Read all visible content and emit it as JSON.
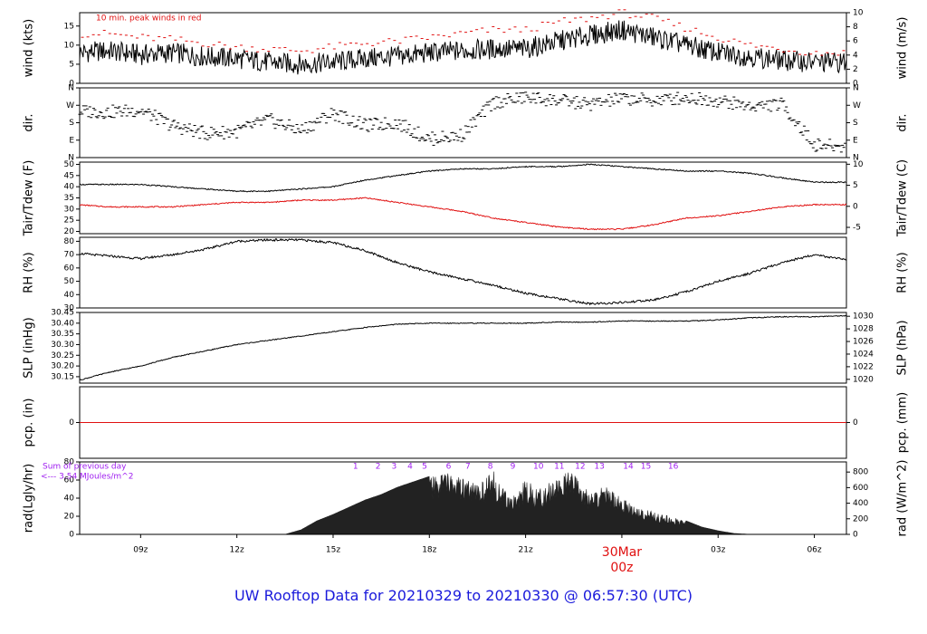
{
  "title": "UW Rooftop Data for 20210329  to  20210330 @ 06:57:30  (UTC)",
  "colors": {
    "primary": "#000000",
    "secondary": "#e01010",
    "radiation": "#222222",
    "annotation": "#a020f0",
    "title": "#1a1adb"
  },
  "chart_data": [
    {
      "type": "line",
      "panel": "wind",
      "ylabel": "wind (kts)",
      "ylabel_right": "wind (m/s)",
      "annotation": "10 min. peak winds in red",
      "ylim": [
        0,
        18.5
      ],
      "yticks": [
        0,
        5,
        10,
        15
      ],
      "ylim_right": [
        0,
        10
      ],
      "yticks_right": [
        0,
        2,
        4,
        6,
        8,
        10
      ],
      "x_hours": [
        7,
        8,
        9,
        10,
        11,
        12,
        13,
        14,
        15,
        16,
        17,
        18,
        19,
        20,
        21,
        22,
        23,
        24,
        25,
        26,
        27,
        28,
        29,
        30,
        31
      ],
      "series": [
        {
          "values": [
            8,
            8.5,
            7.5,
            8,
            7,
            6.5,
            5.5,
            5,
            5.5,
            6.5,
            7,
            8,
            8.5,
            9,
            9,
            11,
            12.5,
            14,
            12,
            10,
            8,
            7,
            6,
            5.5,
            5.5
          ],
          "style": "line",
          "color": "#000000"
        },
        {
          "values": [
            13,
            13,
            12,
            11.5,
            10.5,
            9.5,
            9,
            8.5,
            9.5,
            10.5,
            11,
            12,
            13,
            14,
            14,
            16,
            17,
            18.5,
            17,
            14.5,
            12,
            10,
            9,
            8,
            8
          ],
          "style": "dash",
          "color": "#e01010"
        }
      ]
    },
    {
      "type": "scatter",
      "panel": "dir",
      "ylabel": "dir.",
      "ylabel_right": "dir.",
      "ylim": [
        0,
        360
      ],
      "yticks": [
        0,
        90,
        180,
        270,
        360
      ],
      "ytick_labels": [
        "N",
        "E",
        "S",
        "W",
        "N"
      ],
      "x_hours": [
        7,
        8,
        9,
        10,
        11,
        12,
        13,
        14,
        15,
        16,
        17,
        18,
        19,
        20,
        21,
        22,
        23,
        24,
        25,
        26,
        27,
        28,
        29,
        30,
        31
      ],
      "values": [
        240,
        235,
        245,
        165,
        125,
        135,
        195,
        140,
        230,
        165,
        180,
        95,
        115,
        285,
        310,
        295,
        275,
        305,
        295,
        310,
        295,
        265,
        275,
        65,
        55
      ]
    },
    {
      "type": "line",
      "panel": "temp",
      "ylabel": "Tair/Tdew (F)",
      "ylabel_right": "Tair/Tdew (C)",
      "ylim": [
        19,
        51
      ],
      "yticks": [
        20,
        25,
        30,
        35,
        40,
        45,
        50
      ],
      "ylim_right": [
        -6.5,
        10.5
      ],
      "yticks_right": [
        -5,
        0,
        5,
        10
      ],
      "x_hours": [
        7,
        8,
        9,
        10,
        11,
        12,
        13,
        14,
        15,
        16,
        17,
        18,
        19,
        20,
        21,
        22,
        23,
        24,
        25,
        26,
        27,
        28,
        29,
        30,
        31
      ],
      "series": [
        {
          "name": "Tair",
          "color": "#000000",
          "values": [
            41,
            41,
            41,
            40,
            39,
            38,
            38,
            39,
            40,
            43,
            45,
            47,
            48,
            48,
            49,
            49,
            50,
            49,
            48,
            47,
            47,
            46,
            44,
            42,
            42
          ]
        },
        {
          "name": "Tdew",
          "color": "#e01010",
          "values": [
            32,
            31,
            31,
            31,
            32,
            33,
            33,
            34,
            34,
            35,
            33,
            31,
            29,
            26,
            24,
            22,
            21,
            21,
            23,
            26,
            27,
            29,
            31,
            32,
            32
          ]
        }
      ]
    },
    {
      "type": "line",
      "panel": "rh",
      "ylabel": "RH (%)",
      "ylabel_right": "RH (%)",
      "ylim": [
        30,
        83
      ],
      "yticks": [
        30,
        40,
        50,
        60,
        70,
        80
      ],
      "x_hours": [
        7,
        8,
        9,
        10,
        11,
        12,
        13,
        14,
        15,
        16,
        17,
        18,
        19,
        20,
        21,
        22,
        23,
        24,
        25,
        26,
        27,
        28,
        29,
        30,
        31
      ],
      "values": [
        71,
        69,
        67,
        70,
        74,
        80,
        81,
        81,
        79,
        73,
        64,
        57,
        52,
        47,
        41,
        37,
        33,
        34,
        36,
        42,
        50,
        56,
        64,
        70,
        66
      ]
    },
    {
      "type": "line",
      "panel": "slp",
      "ylabel": "SLP (inHg)",
      "ylabel_right": "SLP (hPa)",
      "ylim": [
        30.12,
        30.45
      ],
      "yticks": [
        30.15,
        30.2,
        30.25,
        30.3,
        30.35,
        30.4,
        30.45
      ],
      "ylim_right": [
        1019.4,
        1030.6
      ],
      "yticks_right": [
        1020,
        1022,
        1024,
        1026,
        1028,
        1030
      ],
      "x_hours": [
        7,
        8,
        9,
        10,
        11,
        12,
        13,
        14,
        15,
        16,
        17,
        18,
        19,
        20,
        21,
        22,
        23,
        24,
        25,
        26,
        27,
        28,
        29,
        30,
        31
      ],
      "values": [
        30.13,
        30.17,
        30.2,
        30.24,
        30.27,
        30.3,
        30.32,
        30.34,
        30.36,
        30.38,
        30.395,
        30.4,
        30.4,
        30.4,
        30.4,
        30.405,
        30.405,
        30.41,
        30.41,
        30.41,
        30.415,
        30.425,
        30.43,
        30.43,
        30.435
      ]
    },
    {
      "type": "line",
      "panel": "pcp",
      "ylabel": "pcp. (in)",
      "ylabel_right": "pcp. (mm)",
      "ylim": [
        -1,
        1
      ],
      "yticks": [
        0
      ],
      "yticks_right": [
        0
      ],
      "x_hours": [
        7,
        31
      ],
      "values": [
        0,
        0
      ]
    },
    {
      "type": "area",
      "panel": "rad",
      "ylabel": "rad(Lgly/hr)",
      "ylabel_right": "rad (W/m^2)",
      "annotation": "Sum of previous day\n<--- 3.54 MJoules/m^2",
      "ylim": [
        0,
        80
      ],
      "yticks": [
        0,
        20,
        40,
        60,
        80
      ],
      "ylim_right": [
        0,
        930
      ],
      "yticks_right": [
        0,
        200,
        400,
        600,
        800
      ],
      "x_hours": [
        13.5,
        14,
        14.5,
        15,
        15.5,
        16,
        16.5,
        17,
        17.5,
        18,
        18.5,
        19,
        19.5,
        20,
        20.5,
        21,
        21.5,
        22,
        22.5,
        23,
        23.5,
        24,
        24.5,
        25,
        25.5,
        26,
        26.5,
        27,
        27.5,
        28
      ],
      "values": [
        0,
        5,
        15,
        22,
        30,
        38,
        44,
        52,
        58,
        64,
        72,
        62,
        55,
        70,
        40,
        60,
        50,
        65,
        70,
        45,
        55,
        40,
        30,
        25,
        20,
        15,
        8,
        4,
        1,
        0
      ],
      "hour_labels": [
        1,
        2,
        3,
        4,
        5,
        6,
        7,
        8,
        9,
        10,
        11,
        12,
        13,
        14,
        15,
        16
      ],
      "hour_label_x": [
        15.7,
        16.4,
        16.9,
        17.4,
        17.85,
        18.6,
        19.2,
        19.9,
        20.6,
        21.4,
        22.05,
        22.7,
        23.3,
        24.2,
        24.75,
        25.6
      ]
    }
  ],
  "x_axis": {
    "range_hours": [
      7.1,
      31
    ],
    "ticks": [
      {
        "h": 9,
        "label": "09z"
      },
      {
        "h": 12,
        "label": "12z"
      },
      {
        "h": 15,
        "label": "15z"
      },
      {
        "h": 18,
        "label": "18z"
      },
      {
        "h": 21,
        "label": "21z"
      },
      {
        "h": 24,
        "label": "30Mar",
        "label2": "00z",
        "highlight": true
      },
      {
        "h": 27,
        "label": "03z"
      },
      {
        "h": 30,
        "label": "06z"
      }
    ]
  }
}
